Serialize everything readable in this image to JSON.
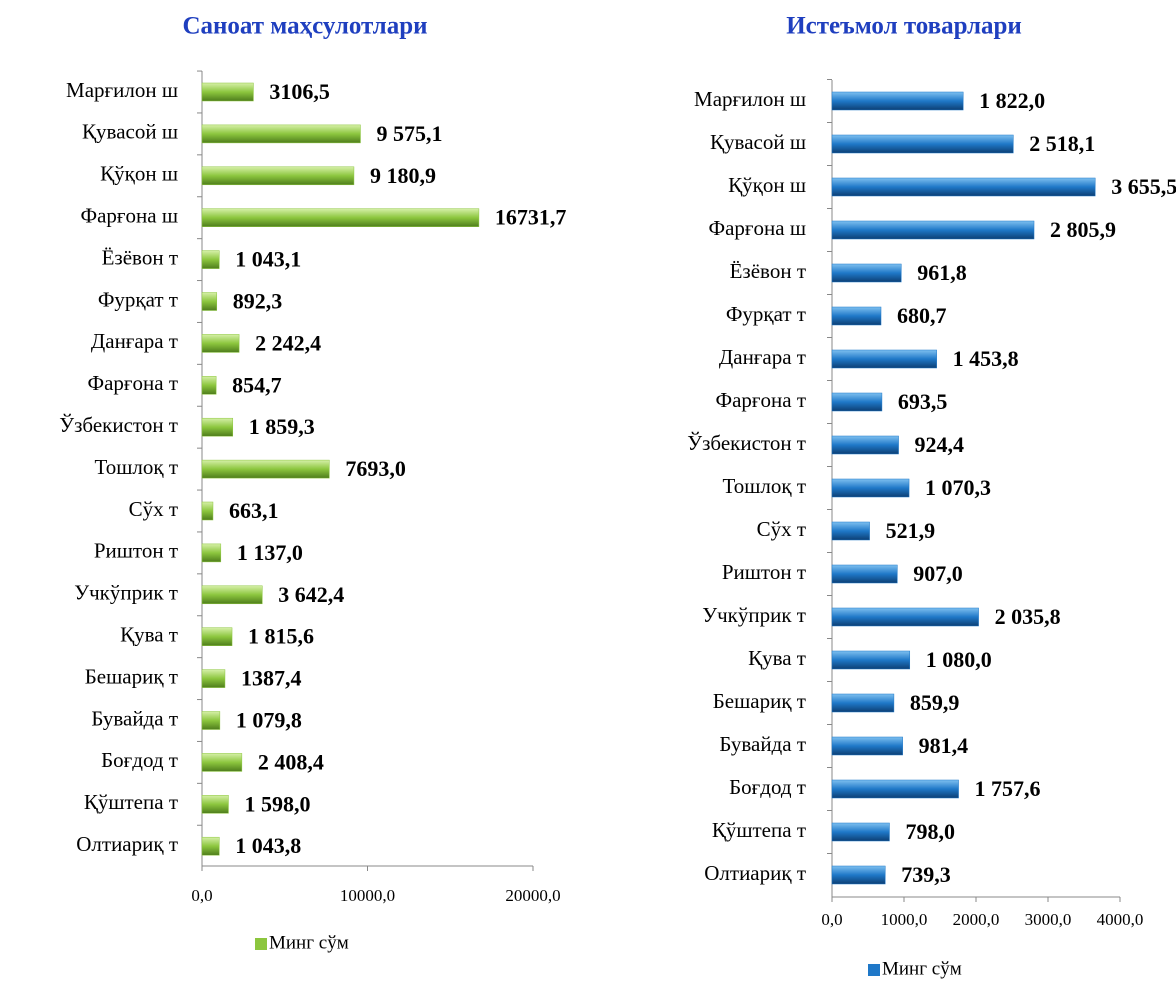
{
  "chart_data": [
    {
      "type": "barh",
      "title": "Саноат маҳсулотлари",
      "categories": [
        "Марғилон ш",
        "Қувасой ш",
        "Қўқон ш",
        "Фарғона ш",
        "Ёзёвон т",
        "Фурқат т",
        "Данғара т",
        "Фарғона т",
        "Ўзбекистон т",
        "Тошлоқ т",
        "Сўх т",
        "Риштон т",
        "Учкўприк т",
        "Қува т",
        "Бешариқ т",
        "Бувайда т",
        "Боғдод т",
        "Қўштепа т",
        "Олтиариқ т"
      ],
      "series": [
        {
          "name": "Минг сўм",
          "color": "#8cc63e",
          "values": [
            3106.5,
            9575.1,
            9180.9,
            16731.7,
            1043.1,
            892.3,
            2242.4,
            854.7,
            1859.3,
            7693.0,
            663.1,
            1137.0,
            3642.4,
            1815.6,
            1387.4,
            1079.8,
            2408.4,
            1598.0,
            1043.8
          ],
          "value_labels": [
            "3106,5",
            "9 575,1",
            "9 180,9",
            "16731,7",
            "1 043,1",
            "892,3",
            "2 242,4",
            "854,7",
            "1 859,3",
            "7693,0",
            "663,1",
            "1 137,0",
            "3 642,4",
            "1 815,6",
            "1387,4",
            "1 079,8",
            "2 408,4",
            "1 598,0",
            "1 043,8"
          ]
        }
      ],
      "xlim": [
        0,
        20000
      ],
      "xticks": [
        {
          "value": 0,
          "label": "0,0"
        },
        {
          "value": 10000,
          "label": "10000,0"
        },
        {
          "value": 20000,
          "label": "20000,0"
        }
      ],
      "legend": "bottom"
    },
    {
      "type": "barh",
      "title": "Истеъмол товарлари",
      "categories": [
        "Марғилон ш",
        "Қувасой ш",
        "Қўқон ш",
        "Фарғона ш",
        "Ёзёвон т",
        "Фурқат т",
        "Данғара т",
        "Фарғона т",
        "Ўзбекистон т",
        "Тошлоқ т",
        "Сўх т",
        "Риштон т",
        "Учкўприк т",
        "Қува т",
        "Бешариқ т",
        "Бувайда т",
        "Боғдод т",
        "Қўштепа т",
        "Олтиариқ т"
      ],
      "series": [
        {
          "name": "Минг сўм",
          "color": "#1f78c8",
          "values": [
            1822.0,
            2518.1,
            3655.5,
            2805.9,
            961.8,
            680.7,
            1453.8,
            693.5,
            924.4,
            1070.3,
            521.9,
            907.0,
            2035.8,
            1080.0,
            859.9,
            981.4,
            1757.6,
            798.0,
            739.3
          ],
          "value_labels": [
            "1 822,0",
            "2 518,1",
            "3 655,5",
            "2 805,9",
            "961,8",
            "680,7",
            "1 453,8",
            "693,5",
            "924,4",
            "1 070,3",
            "521,9",
            "907,0",
            "2 035,8",
            "1 080,0",
            "859,9",
            "981,4",
            "1 757,6",
            "798,0",
            "739,3"
          ]
        }
      ],
      "xlim": [
        0,
        4000
      ],
      "xticks": [
        {
          "value": 0,
          "label": "0,0"
        },
        {
          "value": 1000,
          "label": "1000,0"
        },
        {
          "value": 2000,
          "label": "2000,0"
        },
        {
          "value": 3000,
          "label": "3000,0"
        },
        {
          "value": 4000,
          "label": "4000,0"
        }
      ],
      "legend": "bottom"
    }
  ]
}
